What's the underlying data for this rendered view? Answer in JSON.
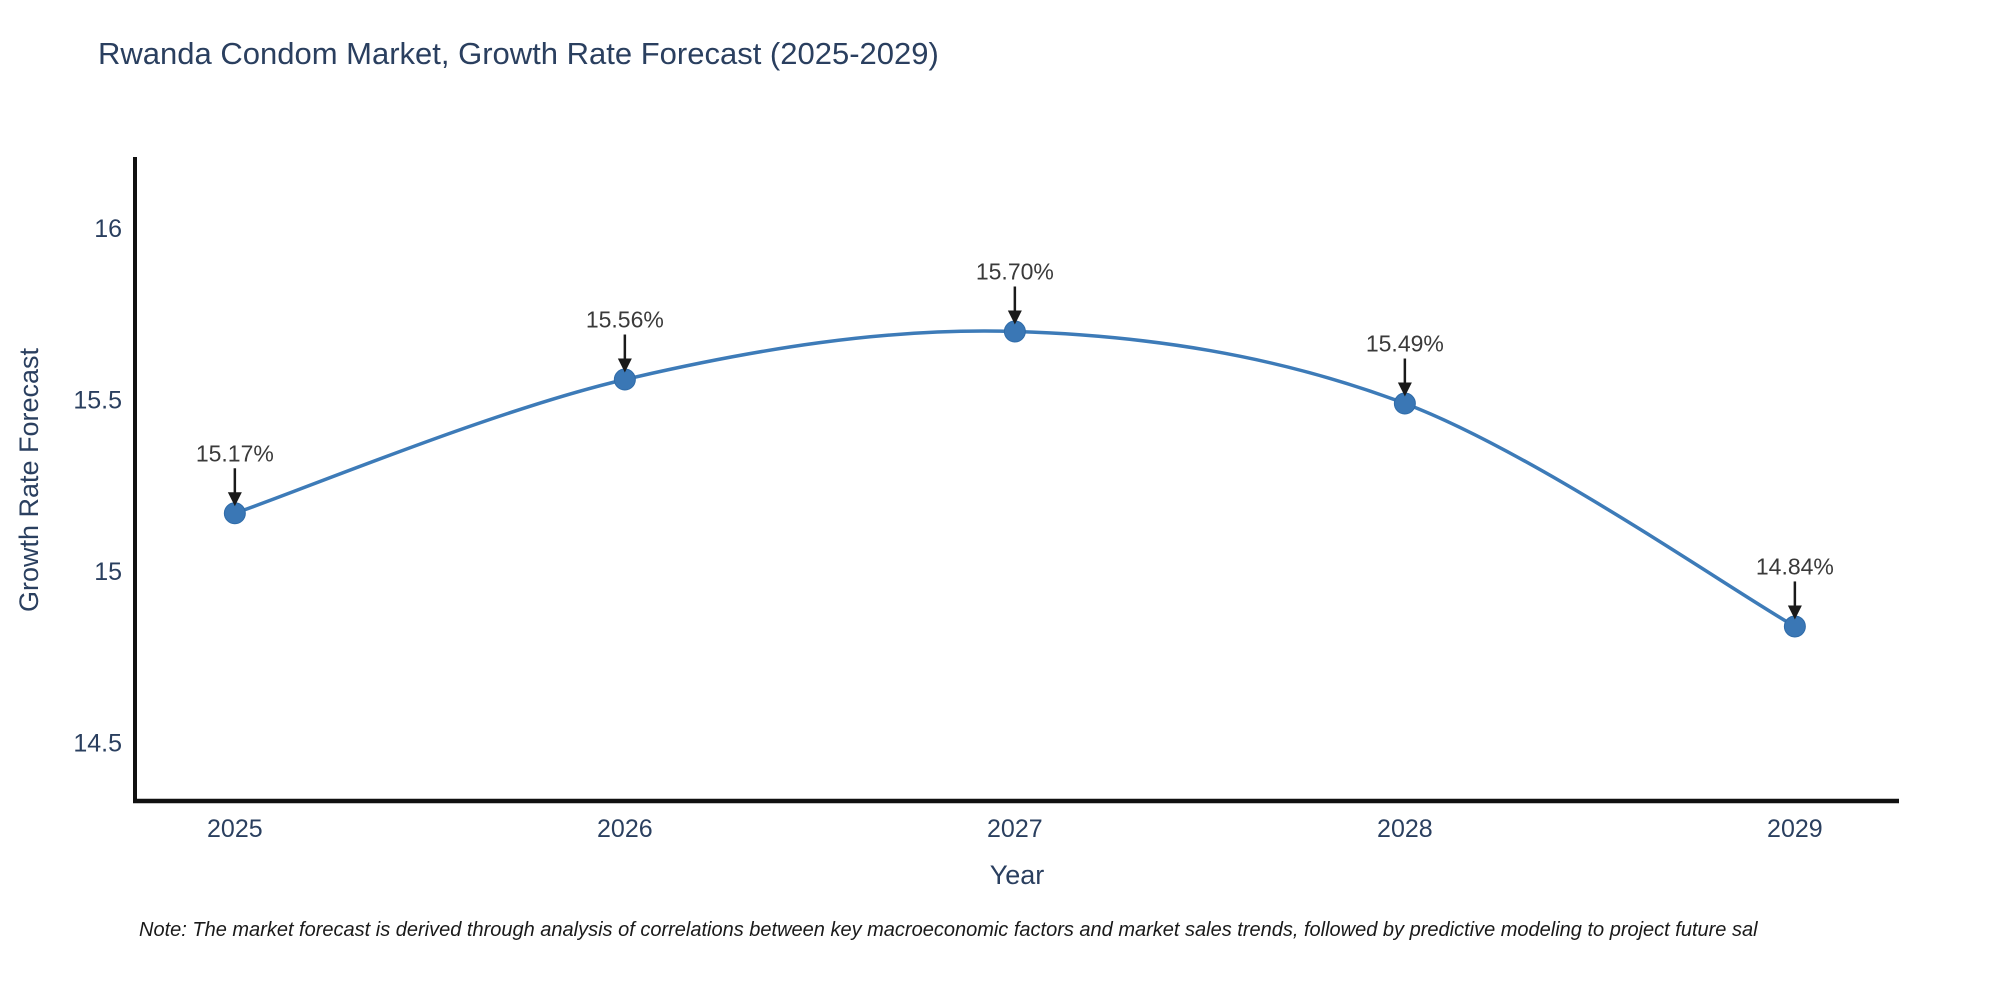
{
  "title": "Rwanda Condom Market, Growth Rate Forecast (2025-2029)",
  "footnote": "Note: The market forecast is derived through analysis of correlations between key macroeconomic factors and market sales trends, followed by predictive modeling to project future sal",
  "chart_data": {
    "type": "line",
    "title": "Rwanda Condom Market, Growth Rate Forecast (2025-2029)",
    "xlabel": "Year",
    "ylabel": "Growth Rate Forecast",
    "x": [
      2025,
      2026,
      2027,
      2028,
      2029
    ],
    "x_tick_labels": [
      "2025",
      "2026",
      "2027",
      "2028",
      "2029"
    ],
    "series": [
      {
        "name": "Growth Rate Forecast",
        "values": [
          15.17,
          15.56,
          15.7,
          15.49,
          14.84
        ]
      }
    ],
    "point_labels": [
      "15.17%",
      "15.56%",
      "15.70%",
      "15.49%",
      "14.84%"
    ],
    "y_tick_values": [
      14.5,
      15,
      15.5,
      16
    ],
    "y_tick_labels": [
      "14.5",
      "15",
      "15.5",
      "16"
    ],
    "xlim": [
      2024.744,
      2029.267
    ],
    "ylim": [
      14.331,
      16.203
    ],
    "grid": false,
    "legend": "none",
    "line_style": "spline",
    "annotation_arrows": "down",
    "colors": {
      "line": "#3d7bb8",
      "marker_fill": "#3a77b5",
      "marker_edge": "#2f6ba8",
      "annotation": "#1a1a1a",
      "annotation_text": "#3a3a3a",
      "axis_text": "#2a3f5f",
      "spine": "#111111",
      "background": "#ffffff"
    }
  }
}
